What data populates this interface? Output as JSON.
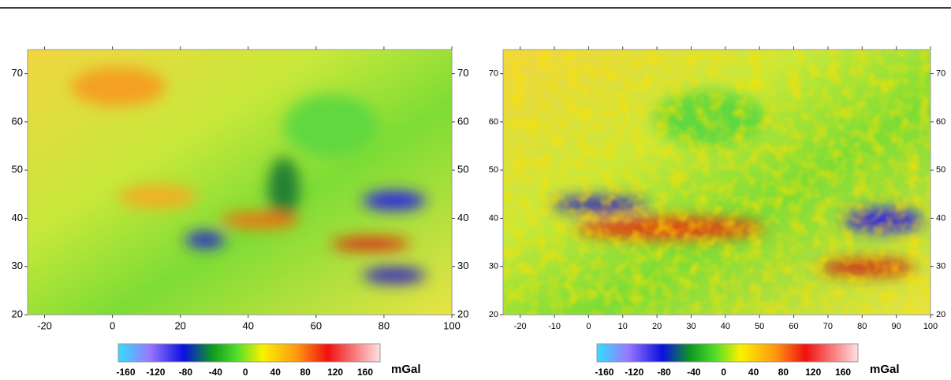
{
  "maps": [
    {
      "xlim": [
        -25,
        100
      ],
      "ylim": [
        20,
        75
      ],
      "xticks": [
        -20,
        0,
        20,
        40,
        60,
        80,
        100
      ],
      "yticks": [
        20,
        30,
        40,
        50,
        60,
        70
      ]
    },
    {
      "xlim": [
        -25,
        100
      ],
      "ylim": [
        20,
        75
      ],
      "xticks": [
        -20,
        -10,
        0,
        10,
        20,
        30,
        40,
        50,
        60,
        70,
        80,
        90,
        100
      ],
      "yticks": [
        20,
        30,
        40,
        50,
        60,
        70
      ]
    }
  ],
  "colorbars": [
    {
      "lim": [
        -170,
        180
      ],
      "ticks": [
        -160,
        -120,
        -80,
        -40,
        0,
        40,
        80,
        120,
        160
      ],
      "unit": "mGal"
    },
    {
      "lim": [
        -170,
        180
      ],
      "ticks": [
        -160,
        -120,
        -80,
        -40,
        0,
        40,
        80,
        120,
        160
      ],
      "unit": "mGal"
    }
  ]
}
